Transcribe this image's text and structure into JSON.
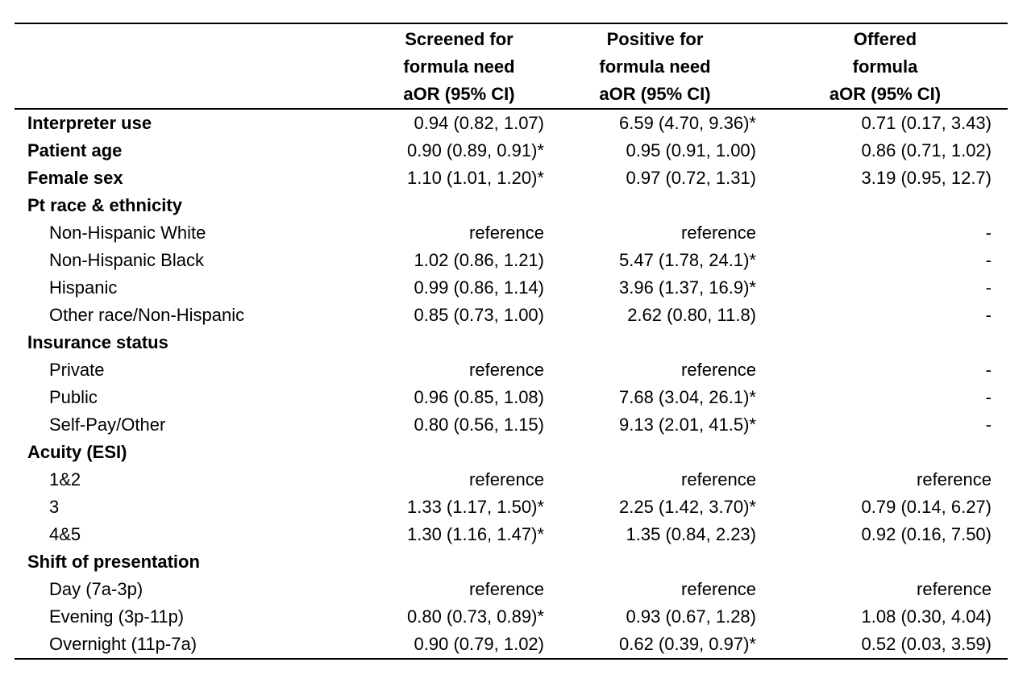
{
  "header": {
    "col1": [
      "Screened for",
      "formula need",
      "aOR (95% CI)"
    ],
    "col2": [
      "Positive for",
      "formula need",
      "aOR (95% CI)"
    ],
    "col3": [
      "Offered",
      "formula",
      "aOR (95% CI)"
    ]
  },
  "rows": [
    {
      "label": "Interpreter use",
      "kind": "bold",
      "v1": "0.94 (0.82, 1.07)",
      "v2": "6.59 (4.70, 9.36)*",
      "v3": "0.71 (0.17, 3.43)"
    },
    {
      "label": "Patient age",
      "kind": "bold",
      "v1": "0.90 (0.89, 0.91)*",
      "v2": "0.95 (0.91, 1.00)",
      "v3": "0.86 (0.71, 1.02)"
    },
    {
      "label": "Female sex",
      "kind": "bold",
      "v1": "1.10 (1.01, 1.20)*",
      "v2": "0.97 (0.72, 1.31)",
      "v3": "3.19 (0.95, 12.7)"
    },
    {
      "label": "Pt race & ethnicity",
      "kind": "bold",
      "v1": "",
      "v2": "",
      "v3": ""
    },
    {
      "label": "Non-Hispanic White",
      "kind": "sub",
      "v1": "reference",
      "v2": "reference",
      "v3": "-"
    },
    {
      "label": "Non-Hispanic Black",
      "kind": "sub",
      "v1": "1.02 (0.86, 1.21)",
      "v2": "5.47 (1.78, 24.1)*",
      "v3": "-"
    },
    {
      "label": "Hispanic",
      "kind": "sub",
      "v1": "0.99 (0.86, 1.14)",
      "v2": "3.96 (1.37, 16.9)*",
      "v3": "-"
    },
    {
      "label": "Other race/Non-Hispanic",
      "kind": "sub",
      "v1": "0.85 (0.73, 1.00)",
      "v2": "2.62 (0.80, 11.8)",
      "v3": "-"
    },
    {
      "label": "Insurance status",
      "kind": "bold",
      "v1": "",
      "v2": "",
      "v3": ""
    },
    {
      "label": "Private",
      "kind": "sub",
      "v1": "reference",
      "v2": "reference",
      "v3": "-"
    },
    {
      "label": "Public",
      "kind": "sub",
      "v1": "0.96 (0.85, 1.08)",
      "v2": "7.68 (3.04, 26.1)*",
      "v3": "-"
    },
    {
      "label": "Self-Pay/Other",
      "kind": "sub",
      "v1": "0.80 (0.56, 1.15)",
      "v2": "9.13 (2.01, 41.5)*",
      "v3": "-"
    },
    {
      "label": "Acuity (ESI)",
      "kind": "bold",
      "v1": "",
      "v2": "",
      "v3": ""
    },
    {
      "label": "1&2",
      "kind": "sub",
      "v1": "reference",
      "v2": "reference",
      "v3": "reference"
    },
    {
      "label": "3",
      "kind": "sub",
      "v1": "1.33 (1.17, 1.50)*",
      "v2": "2.25 (1.42, 3.70)*",
      "v3": "0.79 (0.14, 6.27)"
    },
    {
      "label": "4&5",
      "kind": "sub",
      "v1": "1.30 (1.16, 1.47)*",
      "v2": "1.35 (0.84, 2.23)",
      "v3": "0.92 (0.16, 7.50)"
    },
    {
      "label": "Shift of presentation",
      "kind": "bold",
      "v1": "",
      "v2": "",
      "v3": ""
    },
    {
      "label": "Day (7a-3p)",
      "kind": "sub",
      "v1": "reference",
      "v2": "reference",
      "v3": "reference"
    },
    {
      "label": "Evening (3p-11p)",
      "kind": "sub",
      "v1": "0.80 (0.73, 0.89)*",
      "v2": "0.93 (0.67, 1.28)",
      "v3": "1.08 (0.30, 4.04)"
    },
    {
      "label": "Overnight (11p-7a)",
      "kind": "sub",
      "v1": "0.90 (0.79, 1.02)",
      "v2": "0.62 (0.39, 0.97)*",
      "v3": "0.52 (0.03, 3.59)"
    }
  ]
}
